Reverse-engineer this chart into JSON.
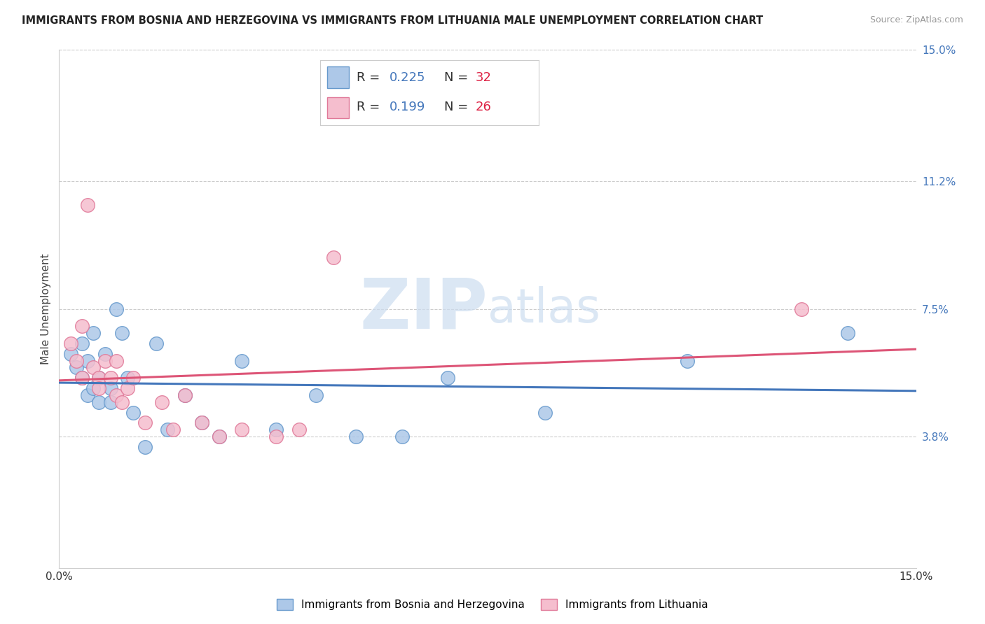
{
  "title": "IMMIGRANTS FROM BOSNIA AND HERZEGOVINA VS IMMIGRANTS FROM LITHUANIA MALE UNEMPLOYMENT CORRELATION CHART",
  "source": "Source: ZipAtlas.com",
  "ylabel": "Male Unemployment",
  "xlim": [
    0.0,
    0.15
  ],
  "ylim": [
    0.0,
    0.15
  ],
  "xtick_labels": [
    "0.0%",
    "15.0%"
  ],
  "xtick_positions": [
    0.0,
    0.15
  ],
  "ytick_labels": [
    "3.8%",
    "7.5%",
    "11.2%",
    "15.0%"
  ],
  "ytick_positions": [
    0.038,
    0.075,
    0.112,
    0.15
  ],
  "bosnia_color": "#adc8e8",
  "bosnia_edge_color": "#6699cc",
  "lithuania_color": "#f5bece",
  "lithuania_edge_color": "#e07898",
  "bosnia_R": 0.225,
  "bosnia_N": 32,
  "lithuania_R": 0.199,
  "lithuania_N": 26,
  "bosnia_line_color": "#4477bb",
  "lithuania_line_color": "#dd5577",
  "legend_text_color": "#4477bb",
  "watermark_color": "#ccddf0",
  "legend_label_bosnia": "Immigrants from Bosnia and Herzegovina",
  "legend_label_lithuania": "Immigrants from Lithuania",
  "bosnia_x": [
    0.002,
    0.003,
    0.004,
    0.004,
    0.005,
    0.005,
    0.006,
    0.006,
    0.007,
    0.007,
    0.008,
    0.009,
    0.009,
    0.01,
    0.011,
    0.012,
    0.013,
    0.015,
    0.017,
    0.019,
    0.022,
    0.025,
    0.028,
    0.032,
    0.038,
    0.045,
    0.052,
    0.06,
    0.068,
    0.085,
    0.11,
    0.138
  ],
  "bosnia_y": [
    0.062,
    0.058,
    0.065,
    0.055,
    0.06,
    0.05,
    0.068,
    0.052,
    0.055,
    0.048,
    0.062,
    0.052,
    0.048,
    0.075,
    0.068,
    0.055,
    0.045,
    0.035,
    0.065,
    0.04,
    0.05,
    0.042,
    0.038,
    0.06,
    0.04,
    0.05,
    0.038,
    0.038,
    0.055,
    0.045,
    0.06,
    0.068
  ],
  "lithuania_x": [
    0.002,
    0.003,
    0.004,
    0.004,
    0.005,
    0.006,
    0.007,
    0.007,
    0.008,
    0.009,
    0.01,
    0.01,
    0.011,
    0.012,
    0.013,
    0.015,
    0.018,
    0.02,
    0.022,
    0.025,
    0.028,
    0.032,
    0.038,
    0.042,
    0.048,
    0.13
  ],
  "lithuania_y": [
    0.065,
    0.06,
    0.055,
    0.07,
    0.105,
    0.058,
    0.055,
    0.052,
    0.06,
    0.055,
    0.05,
    0.06,
    0.048,
    0.052,
    0.055,
    0.042,
    0.048,
    0.04,
    0.05,
    0.042,
    0.038,
    0.04,
    0.038,
    0.04,
    0.09,
    0.075
  ]
}
